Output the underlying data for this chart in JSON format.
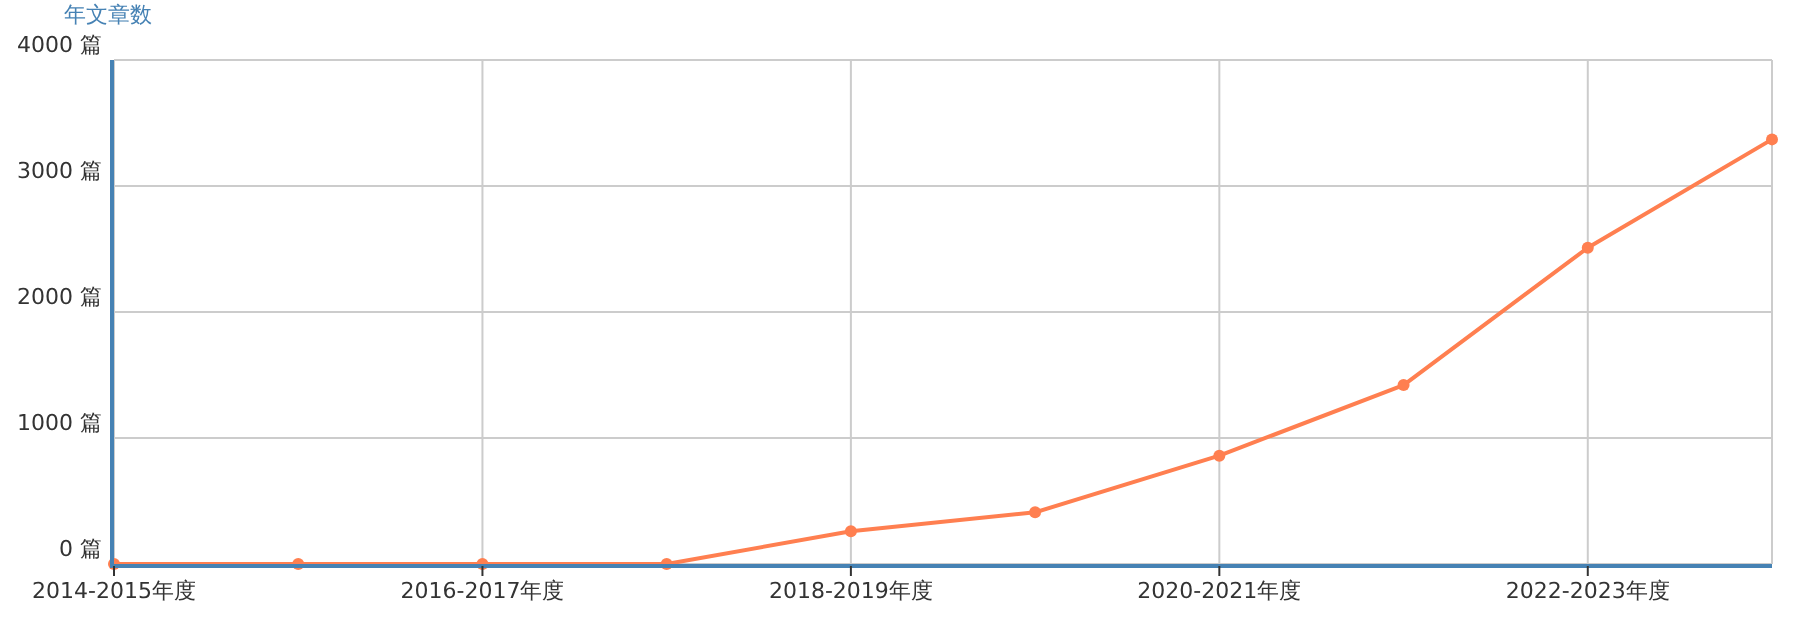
{
  "chart_data": {
    "type": "line",
    "ylabel": "年文章数",
    "categories": [
      "2014-2015年度",
      null,
      "2016-2017年度",
      null,
      "2018-2019年度",
      null,
      "2020-2021年度",
      null,
      "2022-2023年度",
      null
    ],
    "series": [
      {
        "color": "#ff7f50",
        "values": [
          0,
          0,
          0,
          0,
          260,
          410,
          860,
          1420,
          2510,
          3370
        ]
      }
    ],
    "ylim": [
      0,
      4000
    ],
    "yticks": [
      {
        "value": 0,
        "label": "0 篇"
      },
      {
        "value": 1000,
        "label": "1000 篇"
      },
      {
        "value": 2000,
        "label": "2000 篇"
      },
      {
        "value": 3000,
        "label": "3000 篇"
      },
      {
        "value": 4000,
        "label": "4000 篇"
      }
    ],
    "grid": true,
    "marker": "circle",
    "line_style": "solid"
  }
}
